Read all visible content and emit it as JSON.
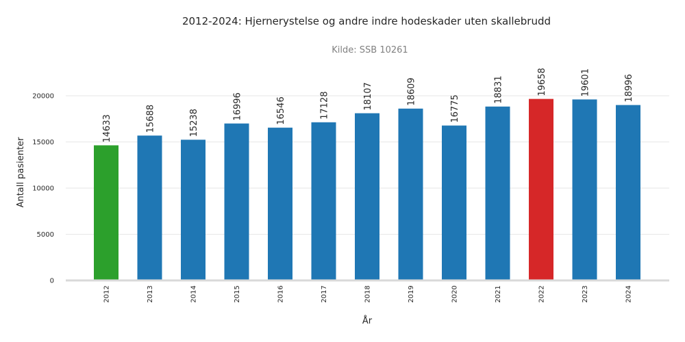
{
  "chart_data": {
    "type": "bar",
    "title": "2012-2024: Hjernerystelse og andre indre hodeskader uten skallebrudd",
    "subtitle": "Kilde: SSB 10261",
    "xlabel": "År",
    "ylabel": "Antall pasienter",
    "categories": [
      "2012",
      "2013",
      "2014",
      "2015",
      "2016",
      "2017",
      "2018",
      "2019",
      "2020",
      "2021",
      "2022",
      "2023",
      "2024"
    ],
    "values": [
      14633,
      15688,
      15238,
      16996,
      16546,
      17128,
      18107,
      18609,
      16775,
      18831,
      19658,
      19601,
      18996
    ],
    "bar_colors": [
      "#2ca02c",
      "#1f77b4",
      "#1f77b4",
      "#1f77b4",
      "#1f77b4",
      "#1f77b4",
      "#1f77b4",
      "#1f77b4",
      "#1f77b4",
      "#1f77b4",
      "#d62728",
      "#1f77b4",
      "#1f77b4"
    ],
    "yticks": [
      0,
      5000,
      10000,
      15000,
      20000
    ],
    "ylim": [
      0,
      22000
    ],
    "grid": true,
    "legend": "none"
  }
}
